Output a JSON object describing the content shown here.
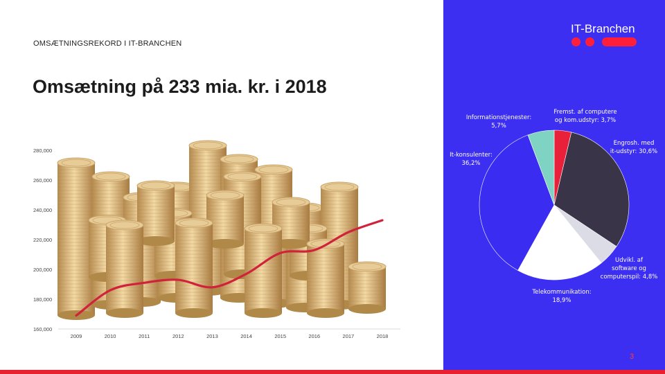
{
  "slide": {
    "kicker": "OMSÆTNINGSREKORD I IT-BRANCHEN",
    "title": "Omsætning på 233 mia. kr. i 2018",
    "page_number": "3"
  },
  "brand": {
    "name": "IT-Branchen",
    "accent": "#ff1f3b",
    "panel": "#3d2ff2"
  },
  "chart_data": [
    {
      "type": "line",
      "x": [
        "2009",
        "2010",
        "2011",
        "2012",
        "2013",
        "2014",
        "2015",
        "2016",
        "2017",
        "2018"
      ],
      "y_ticks": [
        "160,000",
        "180,000",
        "200,000",
        "220,000",
        "240,000",
        "260,000",
        "280,000"
      ],
      "ylim": [
        160000,
        280000
      ],
      "series": [
        {
          "values": [
            169000,
            186000,
            191000,
            193000,
            188000,
            197000,
            211000,
            213000,
            225000,
            233000
          ],
          "color": "#d0223a"
        }
      ]
    },
    {
      "type": "pie",
      "slices": [
        {
          "label_line1": "Fremst. af computere",
          "label_line2": "og kom.udstyr: 3,7%",
          "value": 3.7,
          "color": "#e8203a"
        },
        {
          "label_line1": "Engrosh. med",
          "label_line2": "it-udstyr: 30,6%",
          "value": 30.6,
          "color": "#3a3448"
        },
        {
          "label_line1": "Udvikl. af",
          "label_line2": "software og",
          "label_line3": "computerspil: 4,8%",
          "value": 4.8,
          "color": "#dcdce6"
        },
        {
          "label_line1": "Telekommunikation:",
          "label_line2": "18,9%",
          "value": 18.9,
          "color": "#ffffff"
        },
        {
          "label_line1": "It-konsulenter:",
          "label_line2": "36,2%",
          "value": 36.2,
          "color": "#3a2cf0"
        },
        {
          "label_line1": "Informationstjenester:",
          "label_line2": "5,7%",
          "value": 5.7,
          "color": "#7fd3c3"
        }
      ]
    }
  ]
}
